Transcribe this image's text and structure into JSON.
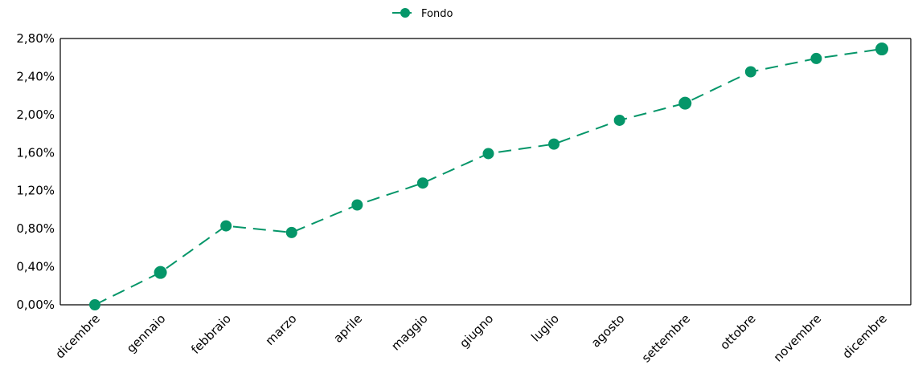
{
  "chart_data": {
    "type": "line",
    "categories": [
      "dicembre",
      "gennaio",
      "febbraio",
      "marzo",
      "aprile",
      "maggio",
      "giugno",
      "luglio",
      "agosto",
      "settembre",
      "ottobre",
      "novembre",
      "dicembre"
    ],
    "series": [
      {
        "name": "Fondo",
        "values": [
          0.0,
          0.34,
          0.83,
          0.76,
          1.05,
          1.28,
          1.59,
          1.69,
          1.94,
          2.12,
          2.45,
          2.59,
          2.69
        ],
        "color": "#059669",
        "line_style": "dashed",
        "marker": "circle"
      }
    ],
    "yticks": [
      "0,00%",
      "0,40%",
      "0,80%",
      "1,20%",
      "1,60%",
      "2,00%",
      "2,40%",
      "2,80%"
    ],
    "ytick_values": [
      0.0,
      0.4,
      0.8,
      1.2,
      1.6,
      2.0,
      2.4,
      2.8
    ],
    "ylim": [
      0.0,
      2.8
    ],
    "legend_position": "top-center",
    "grid": false,
    "title": "",
    "xlabel": "",
    "ylabel": ""
  }
}
